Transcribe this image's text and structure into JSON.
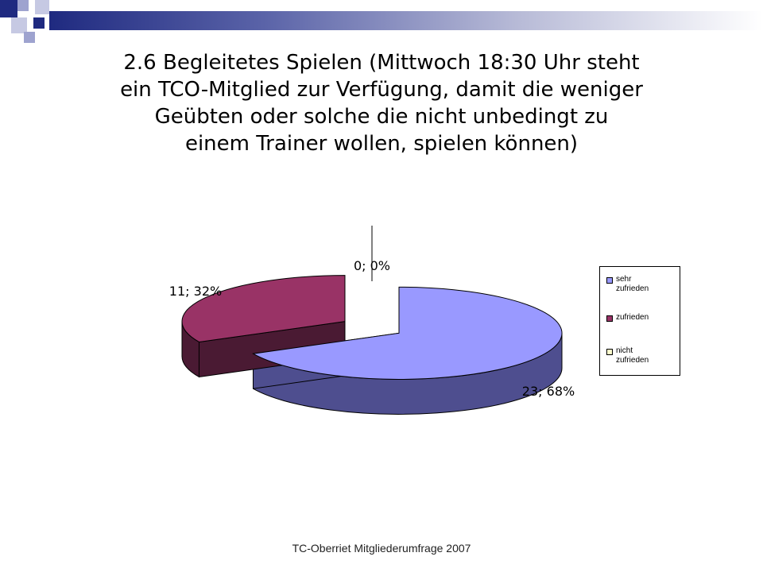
{
  "slide": {
    "title": "2.6 Begleitetes Spielen (Mittwoch 18:30 Uhr steht ein TCO-Mitglied zur Verfügung, damit die weniger Geübten oder solche die nicht unbedingt zu einem Trainer wollen, spielen können)",
    "footer": "TC-Oberriet Mitgliederumfrage 2007"
  },
  "chart_data": {
    "type": "pie",
    "title": "",
    "labels": [
      "sehr zufrieden",
      "zufrieden",
      "nicht zufrieden"
    ],
    "values": [
      23,
      11,
      0
    ],
    "percentages": [
      68,
      32,
      0
    ],
    "data_labels": [
      "23; 68%",
      "11; 32%",
      "0; 0%"
    ],
    "colors": [
      "#9999ff",
      "#993366",
      "#ffffcc"
    ],
    "side_colors": [
      "#4e4e8f",
      "#4a1a33",
      "#ffffcc"
    ],
    "legend_position": "right",
    "exploded": true,
    "3d": true
  },
  "theme": {
    "accent": "#1f2a80"
  }
}
